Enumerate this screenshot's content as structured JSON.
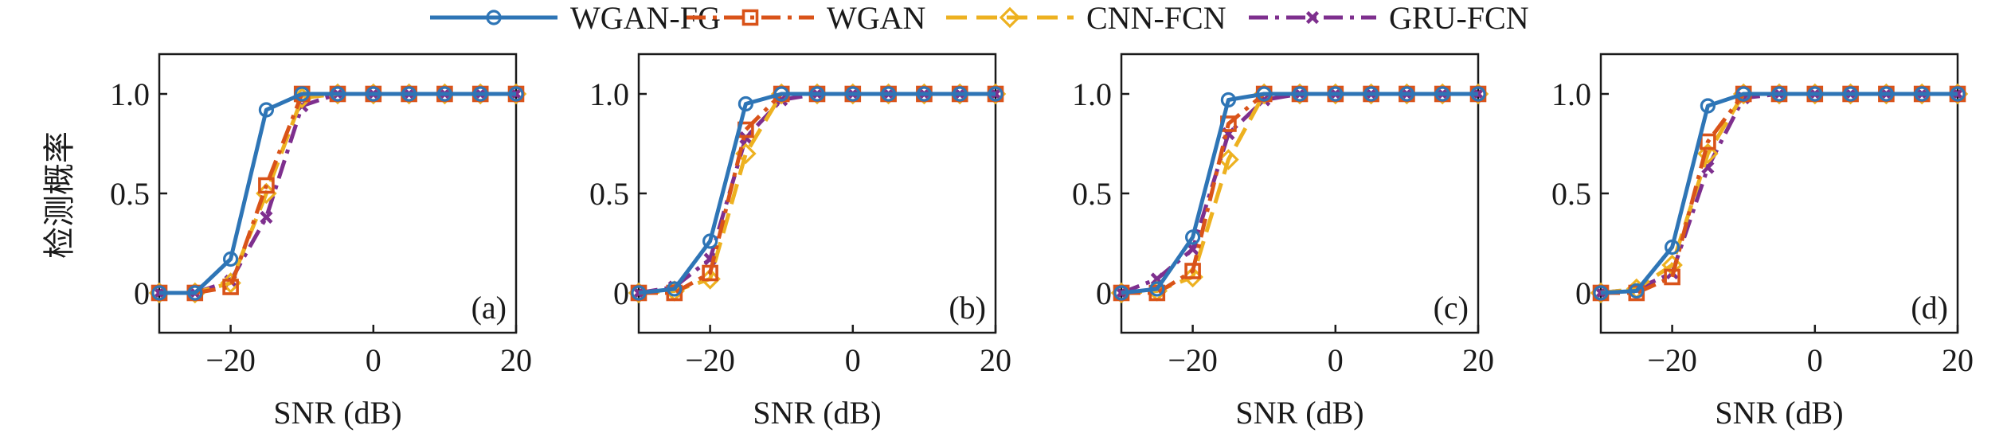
{
  "legend": [
    {
      "key": "wgan_fg",
      "label": "WGAN-FG",
      "color": "#2E75B6",
      "dash": "solid",
      "marker": "circle"
    },
    {
      "key": "wgan",
      "label": "WGAN",
      "color": "#D95319",
      "dash": "dashdot",
      "marker": "square"
    },
    {
      "key": "cnn_fcn",
      "label": "CNN-FCN",
      "color": "#EDB120",
      "dash": "dashed",
      "marker": "diamond"
    },
    {
      "key": "gru_fcn",
      "label": "GRU-FCN",
      "color": "#7E2F8E",
      "dash": "dashdot",
      "marker": "x"
    }
  ],
  "ylabel": "检测概率",
  "chart_data": [
    {
      "type": "line",
      "panel": "(a)",
      "xlabel": "SNR (dB)",
      "ylabel": "检测概率",
      "xlim": [
        -30,
        20
      ],
      "ylim": [
        -0.2,
        1.2
      ],
      "xticks": [
        -20,
        0,
        20
      ],
      "xtick_labels": [
        "−20",
        "0",
        "20"
      ],
      "yticks": [
        0,
        0.5,
        1.0
      ],
      "ytick_labels": [
        "0",
        "0.5",
        "1.0"
      ],
      "x": [
        -30,
        -25,
        -20,
        -15,
        -10,
        -5,
        0,
        5,
        10,
        15,
        20
      ],
      "series": [
        {
          "name": "WGAN-FG",
          "values": [
            0,
            0,
            0.17,
            0.92,
            1,
            1,
            1,
            1,
            1,
            1,
            1
          ]
        },
        {
          "name": "WGAN",
          "values": [
            0,
            0,
            0.03,
            0.54,
            1,
            1,
            1,
            1,
            1,
            1,
            1
          ]
        },
        {
          "name": "CNN-FCN",
          "values": [
            0,
            0,
            0.05,
            0.5,
            0.98,
            1,
            1,
            1,
            1,
            1,
            1
          ]
        },
        {
          "name": "GRU-FCN",
          "values": [
            0,
            0,
            0.06,
            0.38,
            0.94,
            1,
            1,
            1,
            1,
            1,
            1
          ]
        }
      ]
    },
    {
      "type": "line",
      "panel": "(b)",
      "xlabel": "SNR (dB)",
      "xlim": [
        -30,
        20
      ],
      "ylim": [
        -0.2,
        1.2
      ],
      "xticks": [
        -20,
        0,
        20
      ],
      "xtick_labels": [
        "−20",
        "0",
        "20"
      ],
      "yticks": [
        0,
        0.5,
        1.0
      ],
      "ytick_labels": [
        "0",
        "0.5",
        "1.0"
      ],
      "x": [
        -30,
        -25,
        -20,
        -15,
        -10,
        -5,
        0,
        5,
        10,
        15,
        20
      ],
      "series": [
        {
          "name": "WGAN-FG",
          "values": [
            0,
            0.02,
            0.26,
            0.95,
            1,
            1,
            1,
            1,
            1,
            1,
            1
          ]
        },
        {
          "name": "WGAN",
          "values": [
            0,
            0,
            0.1,
            0.82,
            1,
            1,
            1,
            1,
            1,
            1,
            1
          ]
        },
        {
          "name": "CNN-FCN",
          "values": [
            0,
            0.01,
            0.07,
            0.7,
            1,
            1,
            1,
            1,
            1,
            1,
            1
          ]
        },
        {
          "name": "GRU-FCN",
          "values": [
            0,
            0.03,
            0.17,
            0.78,
            0.97,
            1,
            1,
            1,
            1,
            1,
            1
          ]
        }
      ]
    },
    {
      "type": "line",
      "panel": "(c)",
      "xlabel": "SNR (dB)",
      "xlim": [
        -30,
        20
      ],
      "ylim": [
        -0.2,
        1.2
      ],
      "xticks": [
        -20,
        0,
        20
      ],
      "xtick_labels": [
        "−20",
        "0",
        "20"
      ],
      "yticks": [
        0,
        0.5,
        1.0
      ],
      "ytick_labels": [
        "0",
        "0.5",
        "1.0"
      ],
      "x": [
        -30,
        -25,
        -20,
        -15,
        -10,
        -5,
        0,
        5,
        10,
        15,
        20
      ],
      "series": [
        {
          "name": "WGAN-FG",
          "values": [
            0,
            0.02,
            0.28,
            0.97,
            1,
            1,
            1,
            1,
            1,
            1,
            1
          ]
        },
        {
          "name": "WGAN",
          "values": [
            0,
            0,
            0.11,
            0.85,
            1,
            1,
            1,
            1,
            1,
            1,
            1
          ]
        },
        {
          "name": "CNN-FCN",
          "values": [
            0,
            0.01,
            0.08,
            0.67,
            1,
            1,
            1,
            1,
            1,
            1,
            1
          ]
        },
        {
          "name": "GRU-FCN",
          "values": [
            0,
            0.07,
            0.22,
            0.8,
            0.97,
            1,
            1,
            1,
            1,
            1,
            1
          ]
        }
      ]
    },
    {
      "type": "line",
      "panel": "(d)",
      "xlabel": "SNR (dB)",
      "xlim": [
        -30,
        20
      ],
      "ylim": [
        -0.2,
        1.2
      ],
      "xticks": [
        -20,
        0,
        20
      ],
      "xtick_labels": [
        "−20",
        "0",
        "20"
      ],
      "yticks": [
        0,
        0.5,
        1.0
      ],
      "ytick_labels": [
        "0",
        "0.5",
        "1.0"
      ],
      "x": [
        -30,
        -25,
        -20,
        -15,
        -10,
        -5,
        0,
        5,
        10,
        15,
        20
      ],
      "series": [
        {
          "name": "WGAN-FG",
          "values": [
            0,
            0.01,
            0.23,
            0.94,
            1,
            1,
            1,
            1,
            1,
            1,
            1
          ]
        },
        {
          "name": "WGAN",
          "values": [
            0,
            0,
            0.08,
            0.76,
            1,
            1,
            1,
            1,
            1,
            1,
            1
          ]
        },
        {
          "name": "CNN-FCN",
          "values": [
            0,
            0.02,
            0.14,
            0.7,
            1,
            1,
            1,
            1,
            1,
            1,
            1
          ]
        },
        {
          "name": "GRU-FCN",
          "values": [
            0,
            0.02,
            0.1,
            0.63,
            0.98,
            1,
            1,
            1,
            1,
            1,
            1
          ]
        }
      ]
    }
  ]
}
